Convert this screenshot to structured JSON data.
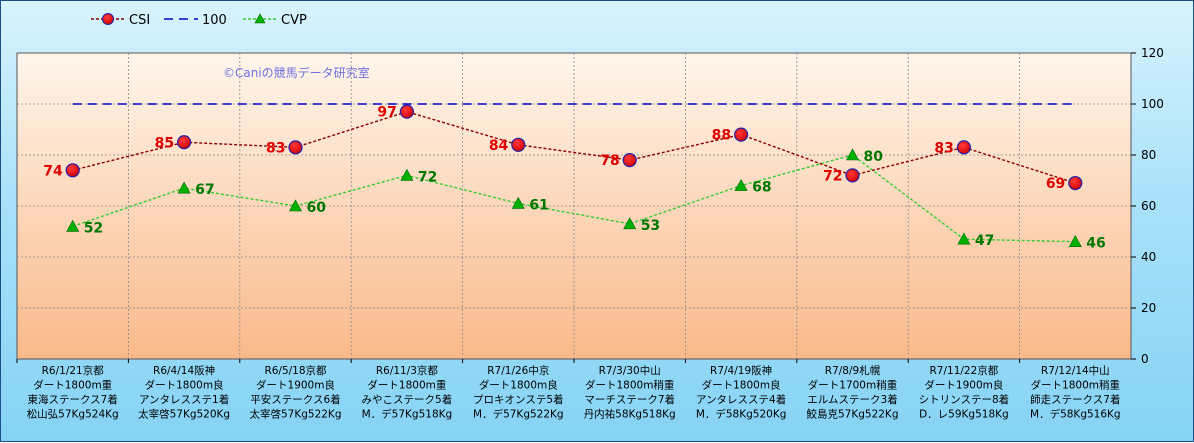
{
  "chart_data": {
    "type": "line",
    "credit": "©Caniの競馬データ研究室",
    "categories": [
      [
        "R6/1/21京都",
        "ダート1800m重",
        "東海ステークス7着",
        "松山弘57Kg524Kg"
      ],
      [
        "R6/4/14阪神",
        "ダート1800m良",
        "アンタレスステ1着",
        "太宰啓57Kg520Kg"
      ],
      [
        "R6/5/18京都",
        "ダート1900m良",
        "平安ステークス6着",
        "太宰啓57Kg522Kg"
      ],
      [
        "R6/11/3京都",
        "ダート1800m重",
        "みやこステーク5着",
        "M．デ57Kg518Kg"
      ],
      [
        "R7/1/26中京",
        "ダート1800m良",
        "プロキオンステ5着",
        "M．デ57Kg522Kg"
      ],
      [
        "R7/3/30中山",
        "ダート1800m稍重",
        "マーチステーク7着",
        "丹内祐58Kg518Kg"
      ],
      [
        "R7/4/19阪神",
        "ダート1800m良",
        "アンタレスステ4着",
        "M．デ58Kg520Kg"
      ],
      [
        "R7/8/9札幌",
        "ダート1700m稍重",
        "エルムステーク3着",
        "鮫島克57Kg522Kg"
      ],
      [
        "R7/11/22京都",
        "ダート1900m良",
        "シトリンステー8着",
        "D．レ59Kg518Kg"
      ],
      [
        "R7/12/14中山",
        "ダート1800m稍重",
        "師走ステークス7着",
        "M．デ58Kg516Kg"
      ]
    ],
    "series": [
      {
        "name": "CSI",
        "values": [
          74,
          85,
          83,
          97,
          84,
          78,
          88,
          72,
          83,
          69
        ],
        "color": "#8b0000",
        "marker": "#e00000",
        "label_color": "#e00000"
      },
      {
        "name": "100",
        "values": [
          100,
          100,
          100,
          100,
          100,
          100,
          100,
          100,
          100,
          100
        ],
        "color": "#0000cc"
      },
      {
        "name": "CVP",
        "values": [
          52,
          67,
          60,
          72,
          61,
          53,
          68,
          80,
          47,
          46
        ],
        "color": "#33cc33",
        "marker": "#00b000",
        "label_color": "#007700"
      }
    ],
    "yticks": [
      0,
      20,
      40,
      60,
      80,
      100,
      120
    ],
    "ylim": [
      0,
      120
    ],
    "grid": true,
    "legend": "top-left",
    "xlabel": "",
    "ylabel": ""
  }
}
